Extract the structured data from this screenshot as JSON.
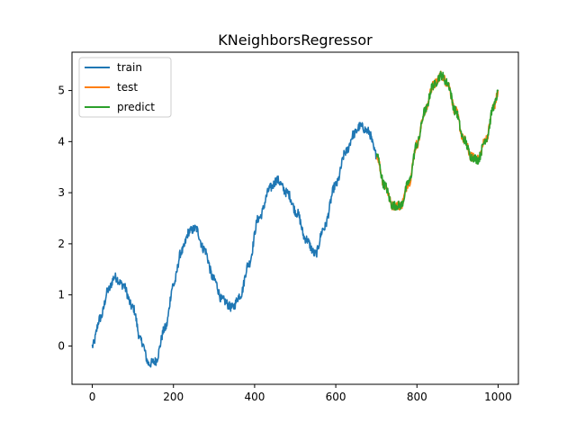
{
  "chart_data": {
    "type": "line",
    "title": "KNeighborsRegressor",
    "xlabel": "",
    "ylabel": "",
    "xlim": [
      -50,
      1050
    ],
    "ylim": [
      -0.75,
      5.75
    ],
    "xticks": [
      0,
      200,
      400,
      600,
      800,
      1000
    ],
    "yticks": [
      0,
      1,
      2,
      3,
      4,
      5
    ],
    "legend": "top-left",
    "grid": false,
    "series": [
      {
        "name": "train",
        "color": "#1f77b4",
        "x_range": [
          0,
          700
        ],
        "points": [
          [
            0,
            0.0
          ],
          [
            20,
            0.55
          ],
          [
            40,
            1.1
          ],
          [
            55,
            1.35
          ],
          [
            75,
            1.2
          ],
          [
            100,
            0.75
          ],
          [
            120,
            0.1
          ],
          [
            140,
            -0.35
          ],
          [
            155,
            -0.3
          ],
          [
            180,
            0.35
          ],
          [
            200,
            1.2
          ],
          [
            220,
            1.85
          ],
          [
            240,
            2.25
          ],
          [
            255,
            2.3
          ],
          [
            275,
            1.9
          ],
          [
            300,
            1.3
          ],
          [
            320,
            0.9
          ],
          [
            345,
            0.75
          ],
          [
            365,
            1.0
          ],
          [
            385,
            1.6
          ],
          [
            410,
            2.5
          ],
          [
            440,
            3.1
          ],
          [
            455,
            3.25
          ],
          [
            480,
            3.0
          ],
          [
            505,
            2.6
          ],
          [
            525,
            2.1
          ],
          [
            550,
            1.8
          ],
          [
            570,
            2.3
          ],
          [
            600,
            3.15
          ],
          [
            625,
            3.8
          ],
          [
            645,
            4.15
          ],
          [
            660,
            4.3
          ],
          [
            680,
            4.2
          ],
          [
            700,
            3.75
          ]
        ]
      },
      {
        "name": "test",
        "color": "#ff7f0e",
        "x_range": [
          700,
          1000
        ],
        "points": [
          [
            700,
            3.75
          ],
          [
            720,
            3.15
          ],
          [
            740,
            2.75
          ],
          [
            760,
            2.75
          ],
          [
            780,
            3.2
          ],
          [
            800,
            3.95
          ],
          [
            820,
            4.6
          ],
          [
            840,
            5.1
          ],
          [
            860,
            5.3
          ],
          [
            875,
            5.15
          ],
          [
            895,
            4.6
          ],
          [
            915,
            4.05
          ],
          [
            935,
            3.7
          ],
          [
            950,
            3.65
          ],
          [
            970,
            4.05
          ],
          [
            990,
            4.7
          ],
          [
            1000,
            4.95
          ]
        ]
      },
      {
        "name": "predict",
        "color": "#2ca02c",
        "x_range": [
          700,
          1000
        ],
        "points": [
          [
            700,
            3.75
          ],
          [
            720,
            3.15
          ],
          [
            740,
            2.75
          ],
          [
            760,
            2.75
          ],
          [
            780,
            3.2
          ],
          [
            800,
            3.95
          ],
          [
            820,
            4.6
          ],
          [
            840,
            5.1
          ],
          [
            860,
            5.3
          ],
          [
            875,
            5.15
          ],
          [
            895,
            4.6
          ],
          [
            915,
            4.05
          ],
          [
            935,
            3.7
          ],
          [
            950,
            3.65
          ],
          [
            970,
            4.05
          ],
          [
            990,
            4.7
          ],
          [
            1000,
            4.95
          ]
        ]
      }
    ]
  }
}
